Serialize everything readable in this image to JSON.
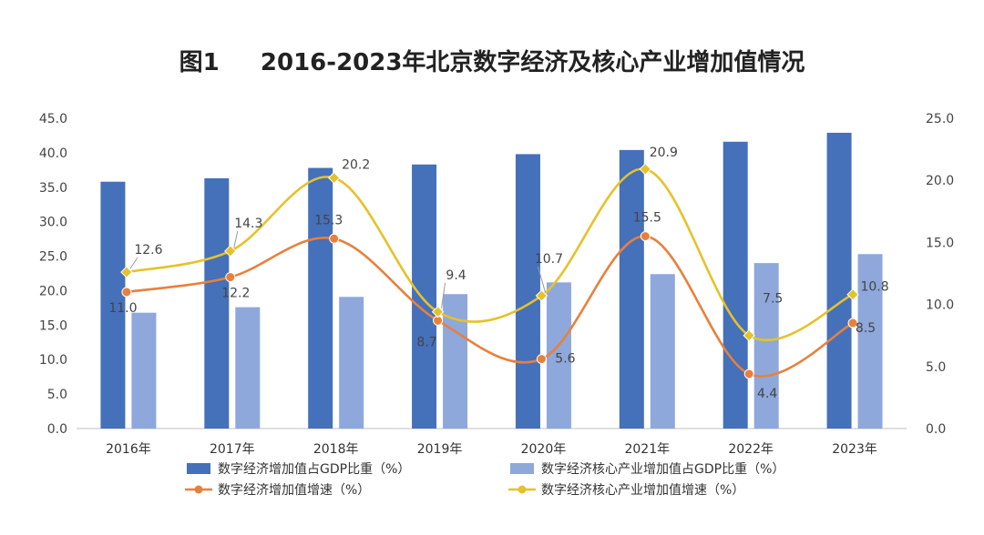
{
  "chart_data": {
    "type": "bar",
    "title": "图1     2016-2023年北京数字经济及核心产业增加值情况",
    "categories": [
      "2016年",
      "2017年",
      "2018年",
      "2019年",
      "2020年",
      "2021年",
      "2022年",
      "2023年"
    ],
    "y_left": {
      "ylim": [
        0,
        45
      ],
      "ticks": [
        "0.0",
        "5.0",
        "10.0",
        "15.0",
        "20.0",
        "25.0",
        "30.0",
        "35.0",
        "40.0",
        "45.0"
      ]
    },
    "y_right": {
      "ylim": [
        0,
        25
      ],
      "ticks": [
        "0.0",
        "5.0",
        "10.0",
        "15.0",
        "20.0",
        "25.0"
      ]
    },
    "series": [
      {
        "name": "数字经济增加值占GDP比重（%）",
        "type": "bar",
        "axis": "left",
        "color": "#4570BA",
        "values": [
          35.8,
          36.3,
          37.8,
          38.3,
          39.8,
          40.4,
          41.6,
          42.9
        ],
        "labels": []
      },
      {
        "name": "数字经济核心产业增加值占GDP比重（%）",
        "type": "bar",
        "axis": "left",
        "color": "#8EA8DB",
        "values": [
          16.8,
          17.6,
          19.1,
          19.5,
          21.2,
          22.4,
          24.0,
          25.3
        ],
        "labels": []
      },
      {
        "name": "数字经济增加值增速（%）",
        "type": "line",
        "axis": "right",
        "color": "#E8803C",
        "marker": "circle",
        "values": [
          11.0,
          12.2,
          15.3,
          8.7,
          5.6,
          15.5,
          4.4,
          8.5
        ],
        "labels": [
          "11.0",
          "12.2",
          "15.3",
          "8.7",
          "5.6",
          "15.5",
          "4.4",
          "8.5"
        ]
      },
      {
        "name": "数字经济核心产业增加值增速（%）",
        "type": "line",
        "axis": "right",
        "color": "#E5C22A",
        "marker": "diamond",
        "values": [
          12.6,
          14.3,
          20.2,
          9.4,
          10.7,
          20.9,
          7.5,
          10.8
        ],
        "labels": [
          "12.6",
          "14.3",
          "20.2",
          "9.4",
          "10.7",
          "20.9",
          "7.5",
          "10.8"
        ]
      }
    ],
    "grid": false,
    "legend_position": "bottom"
  }
}
